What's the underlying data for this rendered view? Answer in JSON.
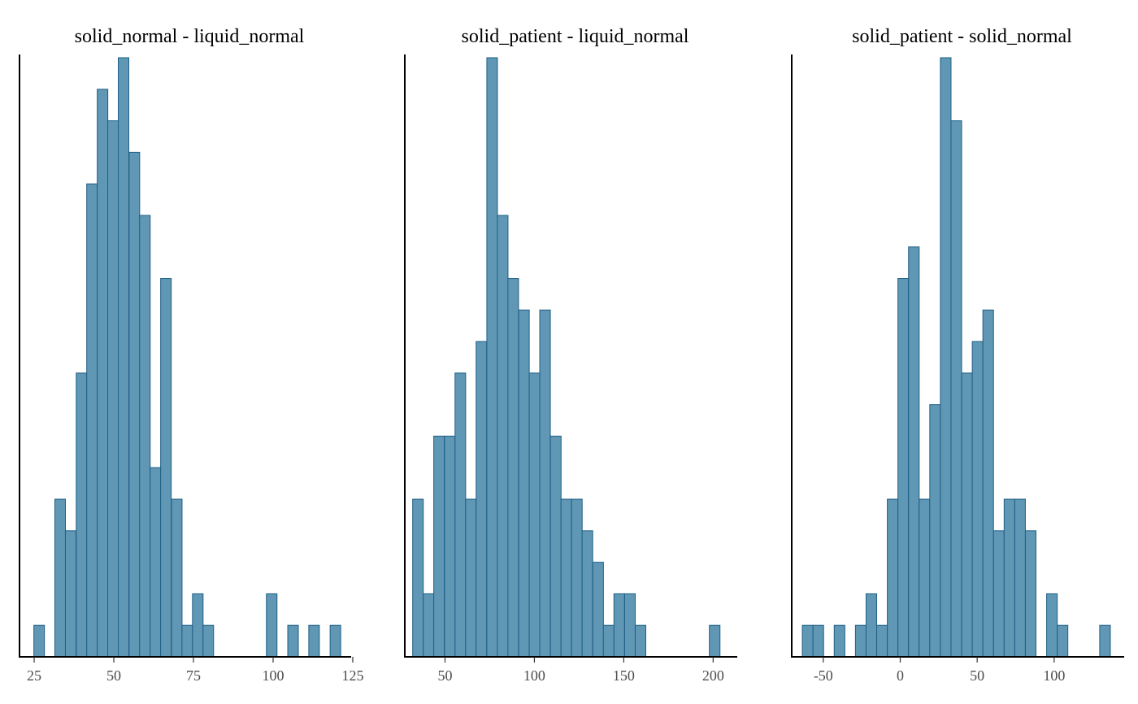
{
  "chart_data": [
    {
      "type": "bar",
      "title": "solid_normal - liquid_normal",
      "xlim": [
        20.4,
        124.5
      ],
      "xticks": [
        25,
        50,
        75,
        100,
        125
      ],
      "ylim": [
        0,
        19
      ],
      "grid": false,
      "bin_width": 3.32,
      "bin_starts": [
        24.9,
        28.2,
        31.5,
        34.8,
        38.2,
        41.5,
        44.8,
        48.1,
        51.4,
        54.8,
        58.1,
        61.4,
        64.7,
        68.1,
        71.4,
        74.7,
        78.0,
        81.3,
        84.7,
        88.0,
        91.3,
        94.6,
        97.9,
        101.3,
        104.6,
        107.9,
        111.2,
        114.5,
        117.9
      ],
      "counts": [
        1,
        0,
        5,
        4,
        9,
        15,
        18,
        17,
        19,
        16,
        14,
        6,
        12,
        5,
        1,
        2,
        1,
        0,
        0,
        0,
        0,
        0,
        2,
        0,
        1,
        0,
        1,
        0,
        1
      ]
    },
    {
      "type": "bar",
      "title": "solid_patient - liquid_normal",
      "xlim": [
        27.5,
        213.5
      ],
      "xticks": [
        50,
        100,
        150,
        200
      ],
      "ylim": [
        0,
        19
      ],
      "grid": false,
      "bin_width": 5.93,
      "bin_starts": [
        31.9,
        37.8,
        43.7,
        49.7,
        55.6,
        61.5,
        67.4,
        73.4,
        79.3,
        85.2,
        91.2,
        97.1,
        103.0,
        109.0,
        114.9,
        120.8,
        126.7,
        132.7,
        138.6,
        144.5,
        150.5,
        156.4,
        162.3,
        168.2,
        174.2,
        180.1,
        186.0,
        192.0,
        197.9
      ],
      "counts": [
        5,
        2,
        7,
        7,
        9,
        5,
        10,
        19,
        14,
        12,
        11,
        9,
        11,
        7,
        5,
        5,
        4,
        3,
        1,
        2,
        2,
        1,
        0,
        0,
        0,
        0,
        0,
        0,
        1
      ]
    },
    {
      "type": "bar",
      "title": "solid_patient - solid_normal",
      "xlim": [
        -70.5,
        145.5
      ],
      "xticks": [
        -50,
        0,
        50,
        100
      ],
      "ylim": [
        0,
        19
      ],
      "grid": false,
      "bin_width": 6.9,
      "bin_starts": [
        -63.6,
        -56.7,
        -49.8,
        -42.9,
        -36.0,
        -29.1,
        -22.2,
        -15.3,
        -8.4,
        -1.5,
        5.4,
        12.3,
        19.2,
        26.1,
        33.0,
        39.9,
        46.8,
        53.7,
        60.6,
        67.5,
        74.4,
        81.3,
        88.2,
        95.1,
        102.0,
        108.9,
        115.8,
        122.7,
        129.6
      ],
      "counts": [
        1,
        1,
        0,
        1,
        0,
        1,
        2,
        1,
        5,
        12,
        13,
        5,
        8,
        19,
        17,
        9,
        10,
        11,
        4,
        5,
        5,
        4,
        0,
        2,
        1,
        0,
        0,
        0,
        1
      ]
    }
  ]
}
